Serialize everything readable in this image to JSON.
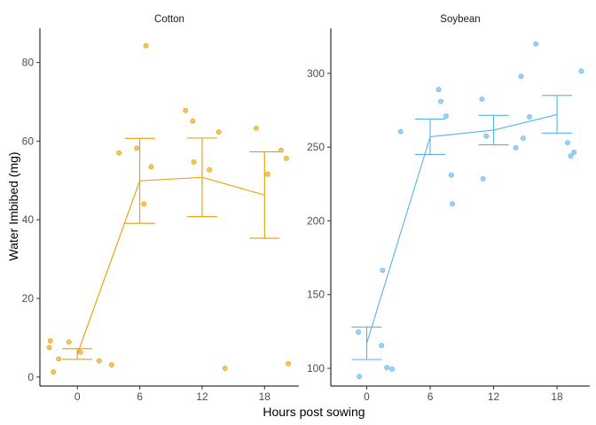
{
  "chart_data": {
    "type": "scatter",
    "xlabel": "Hours post sowing",
    "ylabel": "Water Imbibed (mg)",
    "grid": false,
    "legend": "none",
    "panels": [
      {
        "name": "Cotton",
        "color": "#E69F00",
        "xlim": [
          -3.6,
          21.3
        ],
        "ylim": [
          -2.3,
          88.7
        ],
        "xticks": [
          0,
          6,
          12,
          18
        ],
        "yticks": [
          0,
          20,
          40,
          60,
          80
        ],
        "points": [
          {
            "x": -2.7,
            "y": 7.5
          },
          {
            "x": -2.6,
            "y": 9.2
          },
          {
            "x": -2.3,
            "y": 1.3
          },
          {
            "x": -1.8,
            "y": 4.6
          },
          {
            "x": -0.8,
            "y": 8.9
          },
          {
            "x": 0.3,
            "y": 6.3
          },
          {
            "x": 2.1,
            "y": 4.1
          },
          {
            "x": 3.3,
            "y": 3.1
          },
          {
            "x": 4.0,
            "y": 57.0
          },
          {
            "x": 5.7,
            "y": 58.2
          },
          {
            "x": 6.4,
            "y": 44.0
          },
          {
            "x": 6.6,
            "y": 84.3
          },
          {
            "x": 7.1,
            "y": 53.5
          },
          {
            "x": 10.4,
            "y": 67.8
          },
          {
            "x": 11.1,
            "y": 65.1
          },
          {
            "x": 11.2,
            "y": 54.7
          },
          {
            "x": 12.7,
            "y": 52.7
          },
          {
            "x": 13.6,
            "y": 62.3
          },
          {
            "x": 14.2,
            "y": 2.2
          },
          {
            "x": 17.2,
            "y": 63.3
          },
          {
            "x": 18.3,
            "y": 51.6
          },
          {
            "x": 19.6,
            "y": 57.7
          },
          {
            "x": 20.1,
            "y": 55.6
          },
          {
            "x": 20.3,
            "y": 3.4
          }
        ],
        "summary": [
          {
            "x": 0,
            "mean": 5.8,
            "lower": 4.5,
            "upper": 7.2
          },
          {
            "x": 6,
            "mean": 49.9,
            "lower": 39.1,
            "upper": 60.7
          },
          {
            "x": 12,
            "mean": 50.8,
            "lower": 40.8,
            "upper": 60.8
          },
          {
            "x": 18,
            "mean": 46.3,
            "lower": 35.3,
            "upper": 57.3
          }
        ]
      },
      {
        "name": "Soybean",
        "color": "#56B4E9",
        "xlim": [
          -3.4,
          21.1
        ],
        "ylim": [
          88.0,
          330.5
        ],
        "xticks": [
          0,
          6,
          12,
          18
        ],
        "yticks": [
          100,
          150,
          200,
          250,
          300
        ],
        "points": [
          {
            "x": -0.7,
            "y": 94.5
          },
          {
            "x": -0.8,
            "y": 124.5
          },
          {
            "x": 1.4,
            "y": 115.5
          },
          {
            "x": 1.5,
            "y": 166.5
          },
          {
            "x": 1.9,
            "y": 100.5
          },
          {
            "x": 2.4,
            "y": 99.5
          },
          {
            "x": 3.2,
            "y": 260.5
          },
          {
            "x": 6.8,
            "y": 289.0
          },
          {
            "x": 7.0,
            "y": 281.0
          },
          {
            "x": 7.5,
            "y": 271.0
          },
          {
            "x": 8.0,
            "y": 231.0
          },
          {
            "x": 8.1,
            "y": 211.5
          },
          {
            "x": 10.9,
            "y": 282.5
          },
          {
            "x": 11.0,
            "y": 228.5
          },
          {
            "x": 11.3,
            "y": 257.5
          },
          {
            "x": 14.1,
            "y": 249.5
          },
          {
            "x": 14.6,
            "y": 298.0
          },
          {
            "x": 14.8,
            "y": 256.0
          },
          {
            "x": 15.4,
            "y": 270.5
          },
          {
            "x": 16.0,
            "y": 320.0
          },
          {
            "x": 19.0,
            "y": 253.0
          },
          {
            "x": 19.3,
            "y": 244.0
          },
          {
            "x": 19.6,
            "y": 246.5
          },
          {
            "x": 20.3,
            "y": 301.5
          }
        ],
        "summary": [
          {
            "x": 0,
            "mean": 117.0,
            "lower": 106.0,
            "upper": 128.0
          },
          {
            "x": 6,
            "mean": 257.0,
            "lower": 245.0,
            "upper": 269.0
          },
          {
            "x": 12,
            "mean": 261.5,
            "lower": 251.5,
            "upper": 271.5
          },
          {
            "x": 18,
            "mean": 272.0,
            "lower": 259.5,
            "upper": 285.0
          }
        ]
      }
    ]
  }
}
